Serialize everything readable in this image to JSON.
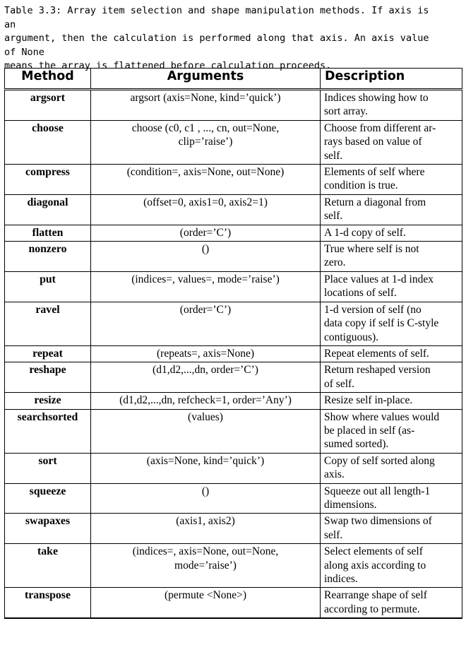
{
  "caption": "Table 3.3: Array item selection and shape manipulation methods. If axis is an\nargument, then the calculation is performed along that axis. An axis value of None\nmeans the array is flattened before calculation proceeds.",
  "headers": {
    "method": "Method",
    "arguments": "Arguments",
    "description": "Description"
  },
  "rows": [
    {
      "method": "argsort",
      "args": "argsort (axis=None, kind=’quick’)",
      "desc": "Indices showing how to\nsort array."
    },
    {
      "method": "choose",
      "args": "choose (c0, c1 , ..., cn, out=None,\nclip=’raise’)",
      "desc": "Choose from different ar-\nrays based on value of\nself."
    },
    {
      "method": "compress",
      "args": "(condition=, axis=None, out=None)",
      "desc": "Elements of self where\ncondition is true."
    },
    {
      "method": "diagonal",
      "args": "(offset=0, axis1=0, axis2=1)",
      "desc": "Return a diagonal from\nself."
    },
    {
      "method": "flatten",
      "args": "(order=’C’)",
      "desc": "A 1-d copy of self."
    },
    {
      "method": "nonzero",
      "args": "()",
      "desc": "True where self is not\nzero."
    },
    {
      "method": "put",
      "args": "(indices=, values=, mode=’raise’)",
      "desc": "Place values at 1-d index\nlocations of self."
    },
    {
      "method": "ravel",
      "args": "(order=’C’)",
      "desc": "1-d version of self (no\ndata copy if self is C-style\ncontiguous)."
    },
    {
      "method": "repeat",
      "args": "(repeats=, axis=None)",
      "desc": "Repeat elements of self."
    },
    {
      "method": "reshape",
      "args": "(d1,d2,...,dn, order=’C’)",
      "desc": "Return reshaped version\nof self."
    },
    {
      "method": "resize",
      "args": "(d1,d2,...,dn, refcheck=1, order=’Any’)",
      "desc": "Resize self in-place."
    },
    {
      "method": "searchsorted",
      "args": "(values)",
      "desc": "Show where values would\nbe placed in self (as-\nsumed sorted)."
    },
    {
      "method": "sort",
      "args": "(axis=None, kind=’quick’)",
      "desc": "Copy of self sorted along\naxis."
    },
    {
      "method": "squeeze",
      "args": "()",
      "desc": "Squeeze out all length-1\ndimensions."
    },
    {
      "method": "swapaxes",
      "args": "(axis1, axis2)",
      "desc": "Swap two dimensions of\nself."
    },
    {
      "method": "take",
      "args": "(indices=, axis=None, out=None,\nmode=’raise’)",
      "desc": "Select elements of self\nalong axis according to\nindices."
    },
    {
      "method": "transpose",
      "args": "(permute <None>)",
      "desc": "Rearrange shape of self\naccording to permute."
    }
  ]
}
